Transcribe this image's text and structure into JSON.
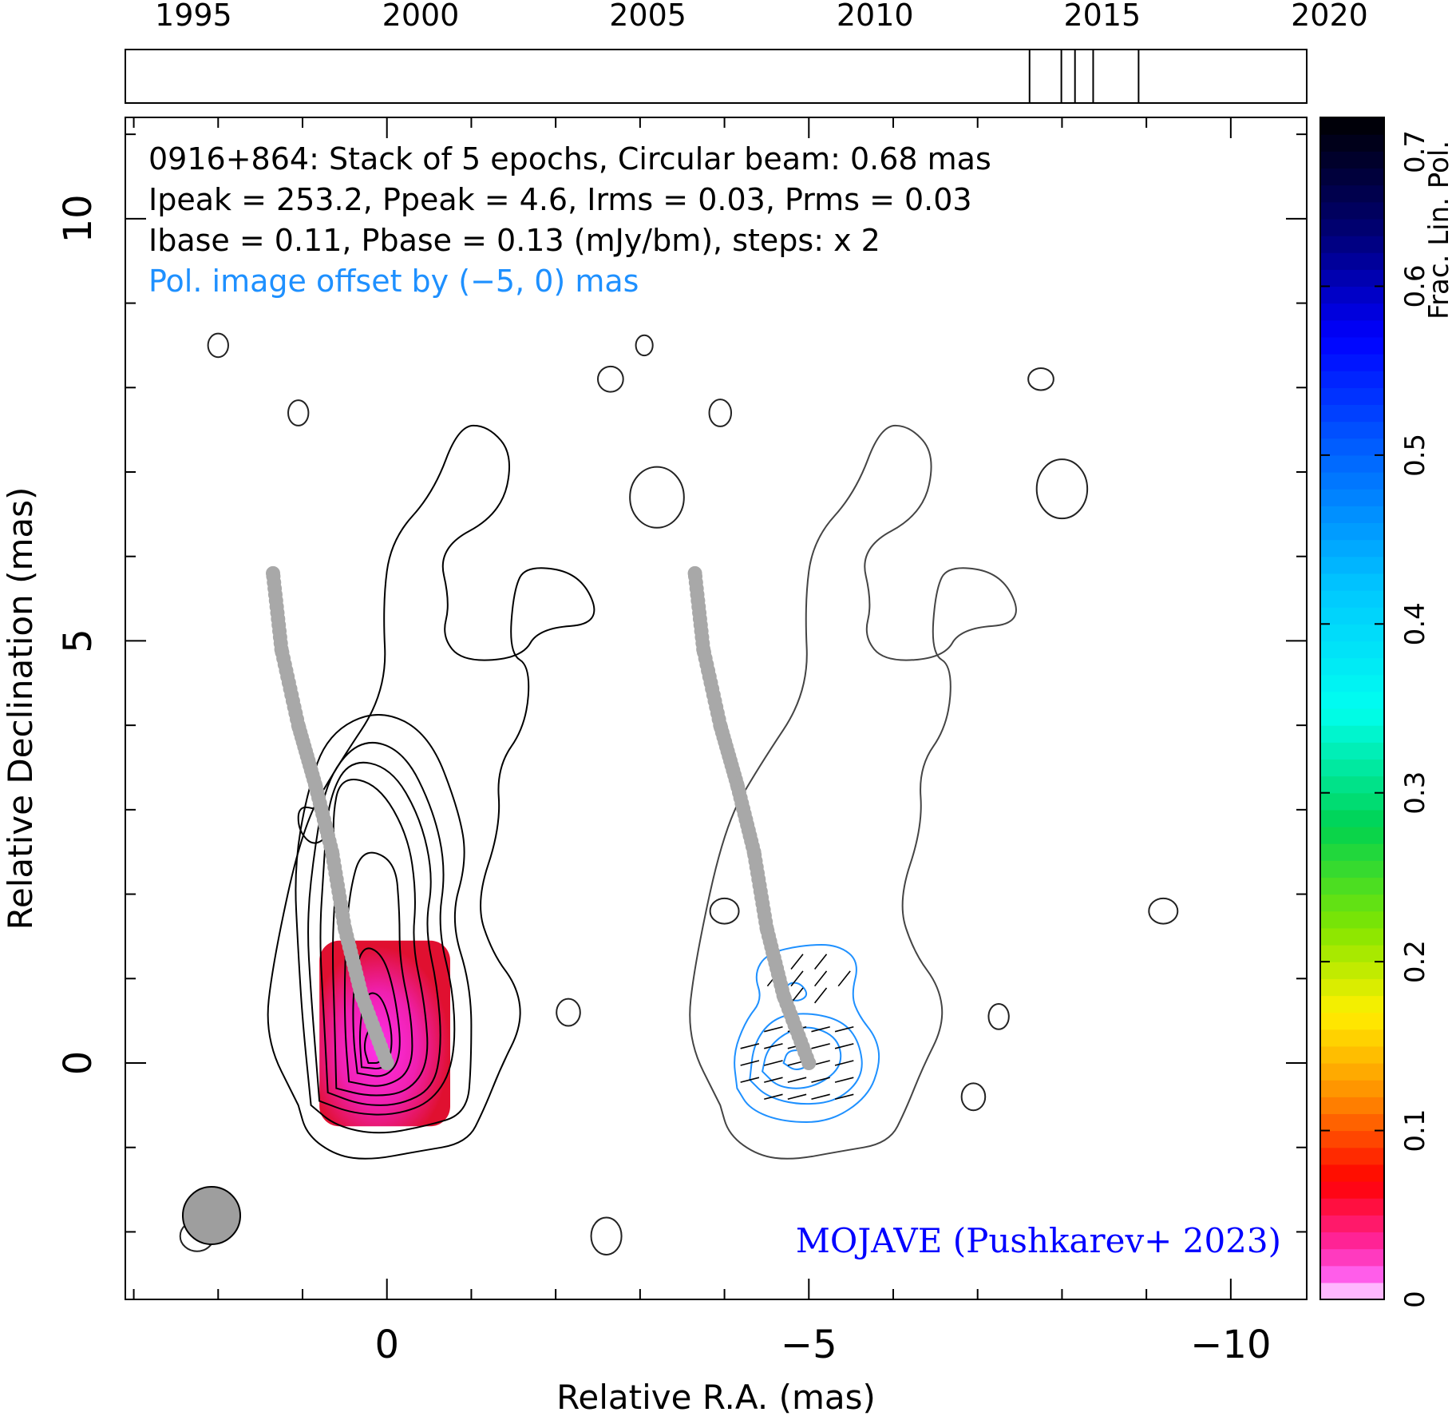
{
  "chart_data": {
    "type": "contour",
    "source": "0916+864",
    "info_lines": [
      "0916+864: Stack of 5 epochs, Circular beam: 0.68 mas",
      "Ipeak = 253.2, Ppeak = 4.6, Irms = 0.03, Prms = 0.03",
      "Ibase = 0.11, Pbase = 0.13 (mJy/bm), steps: x 2"
    ],
    "offset_note": "Pol. image offset by (−5, 0) mas",
    "credit": "MOJAVE (Pushkarev+ 2023)",
    "xlabel": "Relative R.A. (mas)",
    "ylabel": "Relative Declination (mas)",
    "colorbar_label": "Frac. Lin. Pol.",
    "xlim": [
      3.1,
      -10.9
    ],
    "ylim": [
      -2.8,
      11.2
    ],
    "x_ticks": [
      {
        "value": 0,
        "label": "0"
      },
      {
        "value": -5,
        "label": "−5"
      },
      {
        "value": -10,
        "label": "−10"
      }
    ],
    "y_ticks": [
      {
        "value": 0,
        "label": "0"
      },
      {
        "value": 5,
        "label": "5"
      },
      {
        "value": 10,
        "label": "10"
      }
    ],
    "colorbar_range": [
      0,
      0.7
    ],
    "colorbar_ticks": [
      {
        "value": 0,
        "label": "0"
      },
      {
        "value": 0.1,
        "label": "0.1"
      },
      {
        "value": 0.2,
        "label": "0.2"
      },
      {
        "value": 0.3,
        "label": "0.3"
      },
      {
        "value": 0.4,
        "label": "0.4"
      },
      {
        "value": 0.5,
        "label": "0.5"
      },
      {
        "value": 0.6,
        "label": "0.6"
      },
      {
        "value": 0.7,
        "label": "0.7"
      }
    ],
    "epoch_timeline": {
      "range": [
        1993.5,
        2019.5
      ],
      "year_labels": [
        1995,
        2000,
        2005,
        2010,
        2015,
        2020
      ],
      "epochs": [
        2013.4,
        2014.1,
        2014.4,
        2014.8,
        2015.8
      ]
    },
    "beam_fwhm_mas": 0.68,
    "ridge_line": [
      [
        0,
        0
      ],
      [
        0.3,
        0.8
      ],
      [
        0.5,
        1.6
      ],
      [
        0.65,
        2.5
      ],
      [
        0.85,
        3.3
      ],
      [
        1.05,
        4.0
      ],
      [
        1.25,
        4.9
      ],
      [
        1.35,
        5.8
      ]
    ],
    "total_intensity_contours": [
      [
        [
          1.05,
          -0.5
        ],
        [
          0.95,
          -0.85
        ],
        [
          0.6,
          -1.1
        ],
        [
          0.2,
          -1.15
        ],
        [
          -0.35,
          -1.05
        ],
        [
          -0.95,
          -0.95
        ],
        [
          -1.15,
          -0.55
        ],
        [
          -1.35,
          -0.05
        ],
        [
          -1.6,
          0.45
        ],
        [
          -1.55,
          0.9
        ],
        [
          -1.25,
          1.3
        ],
        [
          -1.05,
          1.9
        ],
        [
          -1.35,
          2.8
        ],
        [
          -1.3,
          3.5
        ],
        [
          -1.65,
          4.0
        ],
        [
          -1.7,
          4.7
        ],
        [
          -1.45,
          4.85
        ],
        [
          -1.5,
          5.6
        ],
        [
          -1.65,
          5.9
        ],
        [
          -2.3,
          5.8
        ],
        [
          -2.55,
          5.2
        ],
        [
          -1.8,
          5.15
        ],
        [
          -1.6,
          4.8
        ],
        [
          -0.9,
          4.75
        ],
        [
          -0.65,
          5.05
        ],
        [
          -0.75,
          5.45
        ],
        [
          -0.6,
          6.1
        ],
        [
          -1.35,
          6.5
        ],
        [
          -1.5,
          7.2
        ],
        [
          -1.2,
          7.55
        ],
        [
          -0.85,
          7.55
        ],
        [
          -0.55,
          6.75
        ],
        [
          -0.05,
          6.2
        ],
        [
          0.05,
          5.45
        ],
        [
          0.0,
          4.4
        ],
        [
          0.6,
          3.5
        ],
        [
          1.0,
          2.8
        ],
        [
          1.35,
          1.2
        ],
        [
          1.45,
          0.3
        ],
        [
          1.05,
          -0.5
        ]
      ],
      [
        [
          0.9,
          -0.5
        ],
        [
          0.6,
          -0.75
        ],
        [
          0.1,
          -0.85
        ],
        [
          -0.45,
          -0.75
        ],
        [
          -0.95,
          -0.6
        ],
        [
          -1.0,
          0.0
        ],
        [
          -1.0,
          0.9
        ],
        [
          -0.75,
          1.7
        ],
        [
          -0.95,
          2.4
        ],
        [
          -0.85,
          3.0
        ],
        [
          -0.5,
          3.9
        ],
        [
          0.1,
          4.2
        ],
        [
          0.7,
          3.9
        ],
        [
          0.95,
          3.2
        ],
        [
          1.1,
          2.3
        ],
        [
          1.05,
          1.3
        ],
        [
          1.0,
          0.5
        ],
        [
          0.9,
          -0.5
        ]
      ],
      [
        [
          0.8,
          -0.45
        ],
        [
          0.4,
          -0.6
        ],
        [
          -0.1,
          -0.62
        ],
        [
          -0.55,
          -0.45
        ],
        [
          -0.8,
          0.0
        ],
        [
          -0.8,
          0.8
        ],
        [
          -0.6,
          1.6
        ],
        [
          -0.7,
          2.3
        ],
        [
          -0.55,
          3.0
        ],
        [
          -0.2,
          3.7
        ],
        [
          0.3,
          3.85
        ],
        [
          0.7,
          3.4
        ],
        [
          0.85,
          2.6
        ],
        [
          0.95,
          1.7
        ],
        [
          0.9,
          0.8
        ],
        [
          0.8,
          -0.45
        ]
      ],
      [
        [
          0.7,
          -0.35
        ],
        [
          0.3,
          -0.5
        ],
        [
          -0.15,
          -0.5
        ],
        [
          -0.55,
          -0.3
        ],
        [
          -0.65,
          0.2
        ],
        [
          -0.6,
          0.9
        ],
        [
          -0.45,
          1.6
        ],
        [
          -0.55,
          2.2
        ],
        [
          -0.4,
          2.9
        ],
        [
          -0.05,
          3.5
        ],
        [
          0.45,
          3.6
        ],
        [
          0.7,
          3.1
        ],
        [
          0.75,
          2.3
        ],
        [
          0.8,
          1.5
        ],
        [
          0.75,
          0.6
        ],
        [
          0.7,
          -0.35
        ]
      ],
      [
        [
          0.6,
          -0.3
        ],
        [
          0.2,
          -0.4
        ],
        [
          -0.25,
          -0.35
        ],
        [
          -0.5,
          0.0
        ],
        [
          -0.45,
          0.7
        ],
        [
          -0.3,
          1.4
        ],
        [
          -0.35,
          2.0
        ],
        [
          -0.25,
          2.7
        ],
        [
          0.1,
          3.3
        ],
        [
          0.55,
          3.4
        ],
        [
          0.65,
          2.9
        ],
        [
          0.6,
          2.2
        ],
        [
          0.65,
          1.4
        ],
        [
          0.62,
          0.5
        ],
        [
          0.6,
          -0.3
        ]
      ],
      [
        [
          0.45,
          -0.22
        ],
        [
          0.05,
          -0.3
        ],
        [
          -0.3,
          -0.1
        ],
        [
          -0.3,
          0.5
        ],
        [
          -0.15,
          1.2
        ],
        [
          -0.15,
          1.8
        ],
        [
          -0.1,
          2.4
        ],
        [
          0.3,
          2.55
        ],
        [
          0.45,
          2.0
        ],
        [
          0.5,
          1.2
        ],
        [
          0.5,
          0.4
        ],
        [
          0.45,
          -0.22
        ]
      ],
      [
        [
          0.8,
          3.0
        ],
        [
          0.6,
          2.8
        ],
        [
          0.85,
          2.55
        ],
        [
          1.05,
          2.75
        ],
        [
          1.05,
          3.05
        ],
        [
          0.8,
          3.0
        ]
      ],
      [
        [
          0.35,
          -0.12
        ],
        [
          0.0,
          -0.18
        ],
        [
          -0.18,
          0.1
        ],
        [
          -0.1,
          0.8
        ],
        [
          0.05,
          1.3
        ],
        [
          0.3,
          1.4
        ],
        [
          0.4,
          0.9
        ],
        [
          0.4,
          0.3
        ],
        [
          0.35,
          -0.12
        ]
      ],
      [
        [
          0.3,
          -0.05
        ],
        [
          0.0,
          -0.08
        ],
        [
          -0.08,
          0.3
        ],
        [
          0.05,
          0.8
        ],
        [
          0.25,
          0.85
        ],
        [
          0.33,
          0.4
        ],
        [
          0.3,
          -0.05
        ]
      ],
      [
        [
          0.22,
          0.0
        ],
        [
          0.05,
          0.0
        ],
        [
          0.05,
          0.35
        ],
        [
          0.2,
          0.45
        ],
        [
          0.28,
          0.2
        ],
        [
          0.22,
          0.0
        ]
      ]
    ],
    "pol_contours": [
      [
        [
          -4.15,
          -0.3
        ],
        [
          -4.3,
          -0.55
        ],
        [
          -4.7,
          -0.7
        ],
        [
          -5.25,
          -0.7
        ],
        [
          -5.7,
          -0.4
        ],
        [
          -5.85,
          0.0
        ],
        [
          -5.8,
          0.3
        ],
        [
          -5.6,
          0.55
        ],
        [
          -5.5,
          0.8
        ],
        [
          -5.6,
          1.2
        ],
        [
          -5.35,
          1.4
        ],
        [
          -4.95,
          1.4
        ],
        [
          -4.5,
          1.3
        ],
        [
          -4.35,
          1.05
        ],
        [
          -4.45,
          0.75
        ],
        [
          -4.25,
          0.5
        ],
        [
          -4.1,
          0.1
        ],
        [
          -4.15,
          -0.3
        ]
      ],
      [
        [
          -4.3,
          -0.2
        ],
        [
          -4.5,
          -0.4
        ],
        [
          -4.9,
          -0.5
        ],
        [
          -5.35,
          -0.45
        ],
        [
          -5.65,
          -0.15
        ],
        [
          -5.6,
          0.25
        ],
        [
          -5.4,
          0.5
        ],
        [
          -5.0,
          0.6
        ],
        [
          -4.6,
          0.55
        ],
        [
          -4.35,
          0.25
        ],
        [
          -4.3,
          -0.2
        ]
      ],
      [
        [
          -4.45,
          -0.1
        ],
        [
          -4.65,
          -0.3
        ],
        [
          -5.05,
          -0.3
        ],
        [
          -5.4,
          -0.05
        ],
        [
          -5.35,
          0.3
        ],
        [
          -5.0,
          0.45
        ],
        [
          -4.7,
          0.35
        ],
        [
          -4.5,
          0.15
        ],
        [
          -4.45,
          -0.1
        ]
      ],
      [
        [
          -4.7,
          0.0
        ],
        [
          -4.85,
          -0.1
        ],
        [
          -5.05,
          0.0
        ],
        [
          -4.95,
          0.15
        ],
        [
          -4.75,
          0.15
        ],
        [
          -4.7,
          0.0
        ]
      ],
      [
        [
          -4.7,
          0.8
        ],
        [
          -4.85,
          0.72
        ],
        [
          -5.0,
          0.8
        ],
        [
          -4.9,
          0.95
        ],
        [
          -4.75,
          0.95
        ],
        [
          -4.7,
          0.8
        ]
      ]
    ],
    "fractional_pol_patch": {
      "x_range": [
        0.8,
        -0.75
      ],
      "y_range": [
        -0.75,
        1.45
      ],
      "values": [
        0.0,
        0.02,
        0.04
      ]
    }
  }
}
